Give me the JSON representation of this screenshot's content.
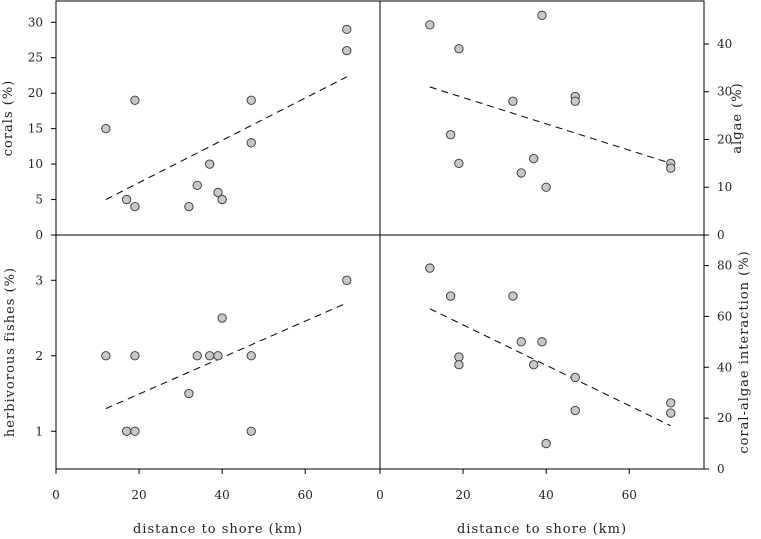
{
  "chart_data": [
    {
      "type": "scatter",
      "panel": "top-left",
      "ylabel": "corals (%)",
      "y_axis_side": "left",
      "xlim": [
        0,
        78
      ],
      "ylim": [
        0,
        33
      ],
      "y_ticks": [
        0,
        5,
        10,
        15,
        20,
        25,
        30
      ],
      "points": [
        [
          12,
          15
        ],
        [
          17,
          5
        ],
        [
          19,
          4
        ],
        [
          19,
          19
        ],
        [
          32,
          4
        ],
        [
          34,
          7
        ],
        [
          37,
          10
        ],
        [
          39,
          6
        ],
        [
          40,
          5
        ],
        [
          47,
          19
        ],
        [
          47,
          13
        ],
        [
          70,
          29
        ],
        [
          70,
          26
        ]
      ],
      "trendline": [
        [
          12,
          5
        ],
        [
          70,
          22.3
        ]
      ]
    },
    {
      "type": "scatter",
      "panel": "top-right",
      "ylabel": "algae (%)",
      "y_axis_side": "right",
      "xlim": [
        0,
        78
      ],
      "ylim": [
        0,
        49
      ],
      "y_ticks": [
        0,
        10,
        20,
        30,
        40
      ],
      "points": [
        [
          12,
          44
        ],
        [
          17,
          21
        ],
        [
          19,
          39
        ],
        [
          19,
          15
        ],
        [
          32,
          28
        ],
        [
          34,
          13
        ],
        [
          37,
          16
        ],
        [
          39,
          46
        ],
        [
          40,
          10
        ],
        [
          47,
          29
        ],
        [
          47,
          28
        ],
        [
          70,
          15
        ],
        [
          70,
          14
        ]
      ],
      "trendline": [
        [
          12,
          31
        ],
        [
          70,
          15
        ]
      ]
    },
    {
      "type": "scatter",
      "panel": "bottom-left",
      "ylabel": "herbivorous fishes (%)",
      "xlabel": "distance to shore (km)",
      "y_axis_side": "left",
      "xlim": [
        0,
        78
      ],
      "ylim": [
        0.5,
        3.6
      ],
      "x_ticks": [
        0,
        20,
        40,
        60
      ],
      "y_ticks": [
        1,
        2,
        3
      ],
      "points": [
        [
          12,
          2
        ],
        [
          17,
          1
        ],
        [
          19,
          1
        ],
        [
          19,
          2
        ],
        [
          32,
          1.5
        ],
        [
          34,
          2
        ],
        [
          37,
          2
        ],
        [
          39,
          2
        ],
        [
          40,
          2.5
        ],
        [
          47,
          2
        ],
        [
          47,
          1
        ],
        [
          70,
          3
        ]
      ],
      "trendline": [
        [
          12,
          1.3
        ],
        [
          70,
          2.7
        ]
      ]
    },
    {
      "type": "scatter",
      "panel": "bottom-right",
      "ylabel": "coral-algae interaction (%)",
      "xlabel": "distance to shore (km)",
      "y_axis_side": "right",
      "xlim": [
        0,
        78
      ],
      "ylim": [
        0,
        92
      ],
      "x_ticks": [
        0,
        20,
        40,
        60
      ],
      "y_ticks": [
        0,
        20,
        40,
        60,
        80
      ],
      "points": [
        [
          12,
          79
        ],
        [
          17,
          68
        ],
        [
          19,
          44
        ],
        [
          19,
          41
        ],
        [
          32,
          68
        ],
        [
          34,
          50
        ],
        [
          37,
          41
        ],
        [
          39,
          50
        ],
        [
          40,
          10
        ],
        [
          47,
          36
        ],
        [
          47,
          23
        ],
        [
          70,
          26
        ],
        [
          70,
          22
        ]
      ],
      "trendline": [
        [
          12,
          63
        ],
        [
          70,
          17
        ]
      ]
    }
  ]
}
